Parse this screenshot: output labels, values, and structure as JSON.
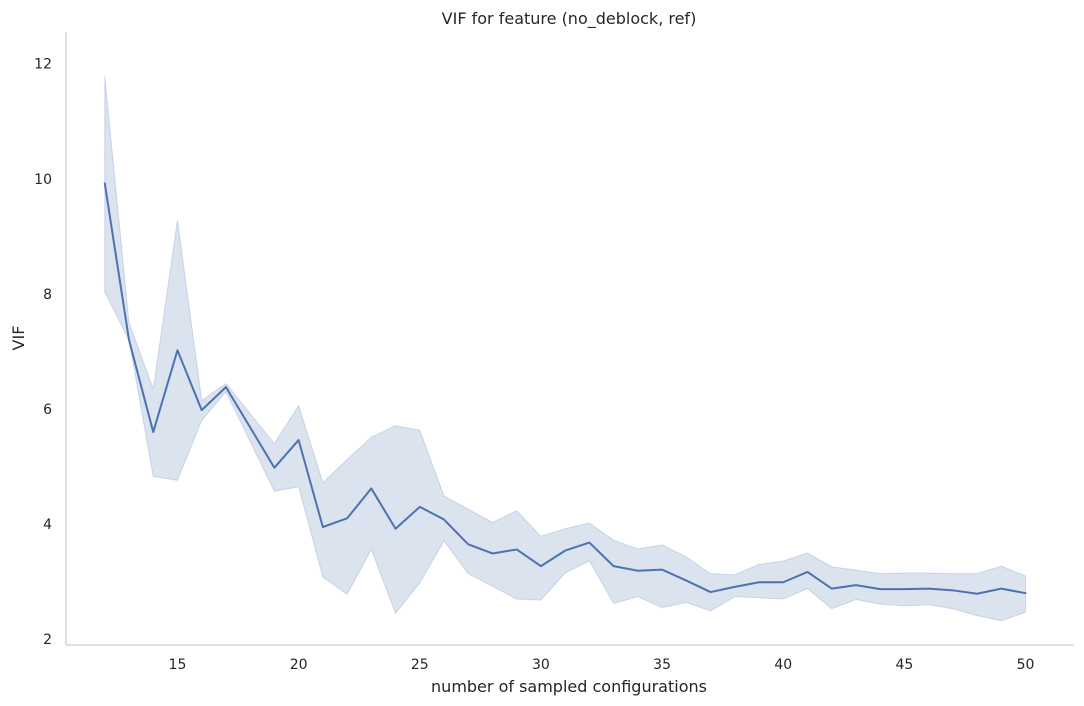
{
  "chart_data": {
    "type": "line",
    "title": "VIF for feature (no_deblock, ref)",
    "xlabel": "number of sampled configurations",
    "ylabel": "VIF",
    "xlim": [
      10.4,
      52.0
    ],
    "ylim": [
      1.9,
      12.55
    ],
    "xticks": [
      15,
      20,
      25,
      30,
      35,
      40,
      45,
      50
    ],
    "yticks": [
      2,
      4,
      6,
      8,
      10,
      12
    ],
    "grid": false,
    "legend": "none",
    "colors": {
      "line": "#4c72b0",
      "band": "#4c72b0"
    },
    "series": [
      {
        "x": [
          12,
          13,
          14,
          15,
          16,
          17,
          19,
          20,
          21,
          22,
          23,
          24,
          25,
          26,
          27,
          28,
          29,
          30,
          31,
          32,
          33,
          34,
          35,
          36,
          37,
          38,
          39,
          40,
          41,
          42,
          43,
          44,
          45,
          46,
          47,
          48,
          49,
          50
        ],
        "values": [
          9.92,
          7.2,
          5.6,
          7.02,
          5.98,
          6.38,
          4.98,
          5.46,
          3.95,
          4.1,
          4.62,
          3.92,
          4.3,
          4.08,
          3.65,
          3.49,
          3.56,
          3.27,
          3.54,
          3.68,
          3.27,
          3.19,
          3.21,
          3.02,
          2.82,
          2.91,
          2.99,
          2.99,
          3.17,
          2.88,
          2.94,
          2.87,
          2.87,
          2.88,
          2.85,
          2.79,
          2.88,
          2.8
        ],
        "ci_upper": [
          11.78,
          7.5,
          6.35,
          9.28,
          6.15,
          6.44,
          5.4,
          6.06,
          4.72,
          5.12,
          5.51,
          5.71,
          5.63,
          4.49,
          4.26,
          4.03,
          4.23,
          3.79,
          3.92,
          4.02,
          3.72,
          3.57,
          3.64,
          3.43,
          3.14,
          3.12,
          3.3,
          3.36,
          3.5,
          3.26,
          3.2,
          3.14,
          3.15,
          3.15,
          3.14,
          3.14,
          3.27,
          3.1
        ],
        "ci_lower": [
          8.03,
          7.2,
          4.83,
          4.76,
          5.8,
          6.3,
          4.57,
          4.65,
          3.08,
          2.78,
          3.56,
          2.45,
          2.98,
          3.71,
          3.14,
          2.92,
          2.7,
          2.68,
          3.15,
          3.36,
          2.62,
          2.74,
          2.55,
          2.64,
          2.49,
          2.74,
          2.72,
          2.7,
          2.88,
          2.53,
          2.69,
          2.61,
          2.58,
          2.6,
          2.53,
          2.41,
          2.32,
          2.47
        ]
      }
    ]
  }
}
